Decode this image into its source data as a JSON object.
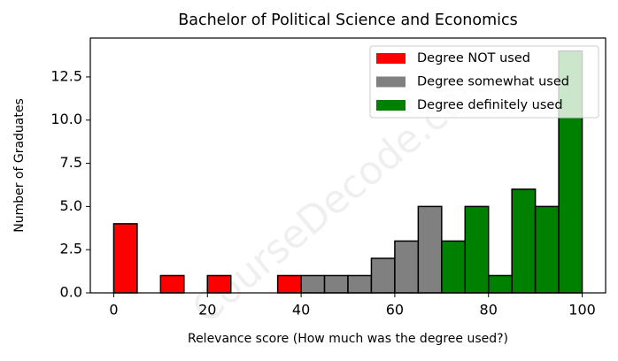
{
  "chart_data": {
    "type": "histogram",
    "title": "Bachelor of Political Science and Economics",
    "xlabel": "Relevance score (How much was the degree used?)",
    "ylabel": "Number of Graduates",
    "watermark": "CourseDecode.com",
    "series": [
      {
        "name": "Degree NOT used",
        "color": "#ff0000",
        "bins": [
          0,
          5,
          10,
          15,
          20,
          25,
          30,
          35,
          40
        ],
        "values": [
          4,
          0,
          1,
          0,
          1,
          0,
          0,
          1
        ]
      },
      {
        "name": "Degree somewhat used",
        "color": "#808080",
        "bins": [
          40,
          45,
          50,
          55,
          60,
          65,
          70
        ],
        "values": [
          1,
          1,
          1,
          2,
          3,
          5
        ]
      },
      {
        "name": "Degree definitely used",
        "color": "#008000",
        "bins": [
          70,
          75,
          80,
          85,
          90,
          95,
          100
        ],
        "values": [
          3,
          5,
          1,
          6,
          5,
          14
        ]
      }
    ],
    "xlim": [
      -5,
      105
    ],
    "xticks": [
      0,
      20,
      40,
      60,
      80,
      100
    ],
    "ylim": [
      0,
      14.75
    ],
    "yticks": [
      {
        "value": 0,
        "label": "0.0"
      },
      {
        "value": 2.5,
        "label": "2.5"
      },
      {
        "value": 5,
        "label": "5.0"
      },
      {
        "value": 7.5,
        "label": "7.5"
      },
      {
        "value": 10,
        "label": "10.0"
      },
      {
        "value": 12.5,
        "label": "12.5"
      }
    ],
    "legend": "upper right"
  }
}
